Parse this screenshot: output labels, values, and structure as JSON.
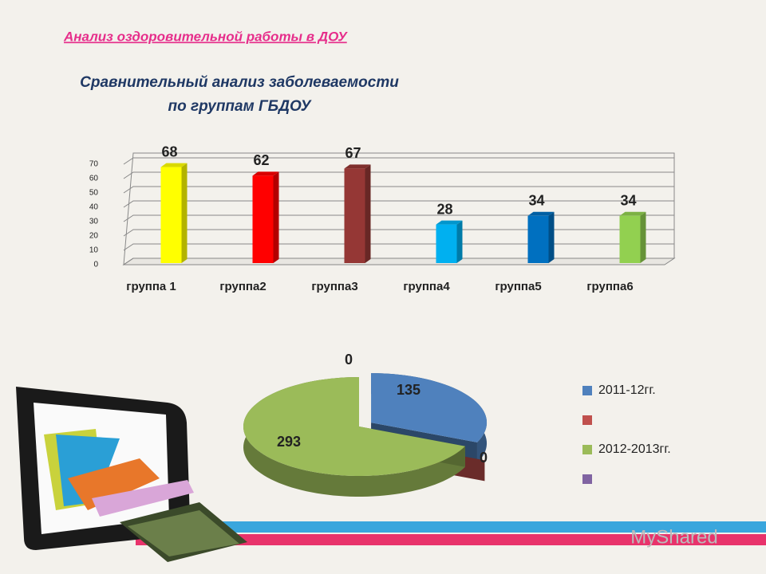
{
  "header": "Анализ оздоровительной работы в ДОУ",
  "watermark": "MyShared",
  "chart_data": [
    {
      "type": "bar",
      "title": [
        "Сравнительный анализ заболеваемости",
        "по группам ГБДОУ"
      ],
      "categories": [
        "группа 1",
        "группа2",
        "группа3",
        "группа4",
        "группа5",
        "группа6"
      ],
      "values": [
        68,
        62,
        67,
        28,
        34,
        34
      ],
      "colors": [
        "#ffff00",
        "#ff0000",
        "#953735",
        "#00b0f0",
        "#0070c0",
        "#92d050"
      ],
      "ylim": [
        0,
        70
      ],
      "yticks": [
        0,
        10,
        20,
        30,
        40,
        50,
        60,
        70
      ],
      "grid": true
    },
    {
      "type": "pie",
      "series": [
        {
          "name": "2011-12гг.",
          "color": "#4f81bd",
          "value": 135
        },
        {
          "name": null,
          "color": "#c0504d",
          "value": 0
        },
        {
          "name": "2012-2013гг.",
          "color": "#9bbb59",
          "value": 293
        },
        {
          "name": null,
          "color": "#8064a2",
          "value": 0
        }
      ],
      "legend": "right"
    }
  ]
}
